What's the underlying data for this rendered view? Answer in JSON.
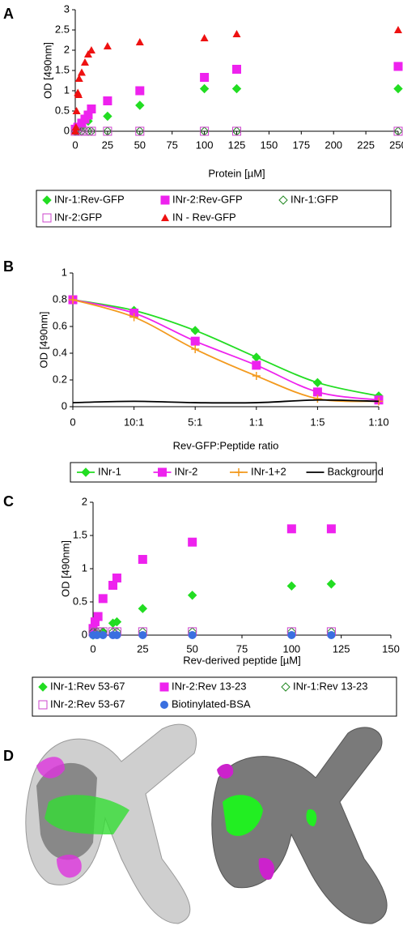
{
  "chart_data": [
    {
      "type": "scatter",
      "panel": "A",
      "xlabel": "Protein [µM]",
      "ylabel": "OD [490nm]",
      "xlim": [
        0,
        250
      ],
      "xticks": [
        0,
        25,
        50,
        75,
        100,
        125,
        150,
        175,
        200,
        225,
        250
      ],
      "ylim": [
        0,
        3
      ],
      "yticks": [
        0,
        0.5,
        1,
        1.5,
        2,
        2.5,
        3
      ],
      "series": [
        {
          "name": "INr-1:Rev-GFP",
          "color": "#22dd22",
          "marker": "diamond",
          "x": [
            0,
            1,
            2,
            5,
            10,
            25,
            50,
            100,
            125,
            250
          ],
          "values": [
            0,
            0.02,
            0.05,
            0.1,
            0.25,
            0.37,
            0.64,
            1.05,
            1.05,
            1.05
          ]
        },
        {
          "name": "INr-2:Rev-GFP",
          "color": "#ee22ee",
          "marker": "square",
          "x": [
            0,
            2,
            5,
            7.5,
            10,
            12.5,
            25,
            50,
            100,
            125,
            250
          ],
          "values": [
            0.05,
            0.1,
            0.2,
            0.3,
            0.4,
            0.55,
            0.75,
            1.0,
            1.33,
            1.53,
            1.6
          ]
        },
        {
          "name": "INr-1:GFP",
          "color": "#228822",
          "marker": "diamond-open",
          "x": [
            0,
            2,
            5,
            10,
            12.5,
            25,
            50,
            100,
            125,
            250
          ],
          "values": [
            0,
            0,
            0,
            0,
            0,
            0,
            0,
            0,
            0,
            0
          ]
        },
        {
          "name": "INr-2:GFP",
          "color": "#cc44cc",
          "marker": "square-open",
          "x": [
            0,
            2,
            5,
            10,
            12.5,
            25,
            50,
            100,
            125,
            250
          ],
          "values": [
            0,
            0,
            0,
            0,
            0,
            0,
            0,
            0,
            0,
            0
          ]
        },
        {
          "name": "IN - Rev-GFP",
          "color": "#ee1111",
          "marker": "triangle",
          "x": [
            0,
            0.5,
            1,
            2,
            2.5,
            3,
            5,
            7.5,
            10,
            12.5,
            25,
            50,
            100,
            125,
            250
          ],
          "values": [
            0,
            0.1,
            0.5,
            0.95,
            0.9,
            1.3,
            1.45,
            1.7,
            1.9,
            2.0,
            2.1,
            2.2,
            2.3,
            2.4,
            2.5
          ]
        }
      ]
    },
    {
      "type": "line",
      "panel": "B",
      "xlabel": "Rev-GFP:Peptide ratio",
      "ylabel": "OD [490nm]",
      "categories": [
        "0",
        "10:1",
        "5:1",
        "1:1",
        "1:5",
        "1:10"
      ],
      "ylim": [
        0,
        1
      ],
      "yticks": [
        0,
        0.2,
        0.4,
        0.6,
        0.8,
        1
      ],
      "series": [
        {
          "name": "INr-1",
          "color": "#22dd22",
          "marker": "diamond",
          "values": [
            0.8,
            0.72,
            0.57,
            0.37,
            0.18,
            0.08
          ]
        },
        {
          "name": "INr-2",
          "color": "#ee22ee",
          "marker": "square",
          "values": [
            0.8,
            0.7,
            0.49,
            0.31,
            0.11,
            0.05
          ]
        },
        {
          "name": "INr-1+2",
          "color": "#f39a1e",
          "marker": "plus",
          "values": [
            0.8,
            0.67,
            0.43,
            0.23,
            0.06,
            0.04
          ]
        },
        {
          "name": "Background",
          "color": "#000000",
          "marker": "none",
          "values": [
            0.03,
            0.04,
            0.03,
            0.03,
            0.05,
            0.04
          ]
        }
      ]
    },
    {
      "type": "scatter",
      "panel": "C",
      "xlabel": "Rev-derived peptide [µM]",
      "ylabel": "OD [490nm]",
      "xlim": [
        0,
        150
      ],
      "xticks": [
        0,
        25,
        50,
        75,
        100,
        125,
        150
      ],
      "ylim": [
        0,
        2
      ],
      "yticks": [
        0,
        0.5,
        1,
        1.5,
        2
      ],
      "series": [
        {
          "name": "INr-1:Rev 53-67",
          "color": "#22dd22",
          "marker": "diamond",
          "x": [
            0,
            2,
            5,
            10,
            12,
            25,
            50,
            100,
            120
          ],
          "values": [
            0,
            0.02,
            0.05,
            0.18,
            0.2,
            0.4,
            0.6,
            0.74,
            0.77
          ]
        },
        {
          "name": "INr-2:Rev 13-23",
          "color": "#ee22ee",
          "marker": "square",
          "x": [
            0,
            1,
            2.5,
            5,
            10,
            12,
            25,
            50,
            100,
            120
          ],
          "values": [
            0.1,
            0.2,
            0.28,
            0.55,
            0.75,
            0.86,
            1.14,
            1.4,
            1.6,
            1.6
          ]
        },
        {
          "name": "INr-1:Rev 13-23",
          "color": "#228822",
          "marker": "diamond-open",
          "x": [
            0,
            2,
            5,
            10,
            12,
            25,
            50,
            100,
            120
          ],
          "values": [
            0.05,
            0.05,
            0.05,
            0.05,
            0.05,
            0.05,
            0.05,
            0.05,
            0.05
          ]
        },
        {
          "name": "INr-2:Rev 53-67",
          "color": "#cc44cc",
          "marker": "square-open",
          "x": [
            0,
            2,
            5,
            10,
            12,
            25,
            50,
            100,
            120
          ],
          "values": [
            0.05,
            0.05,
            0.05,
            0.05,
            0.05,
            0.05,
            0.05,
            0.05,
            0.05
          ]
        },
        {
          "name": "Biotinylated-BSA",
          "color": "#3a6fe0",
          "marker": "circle",
          "x": [
            0,
            2,
            5,
            10,
            12,
            25,
            50,
            100,
            120
          ],
          "values": [
            0,
            0,
            0,
            0,
            0,
            0,
            0,
            0,
            0
          ]
        }
      ]
    }
  ],
  "panel_d": {
    "panel": "D"
  }
}
